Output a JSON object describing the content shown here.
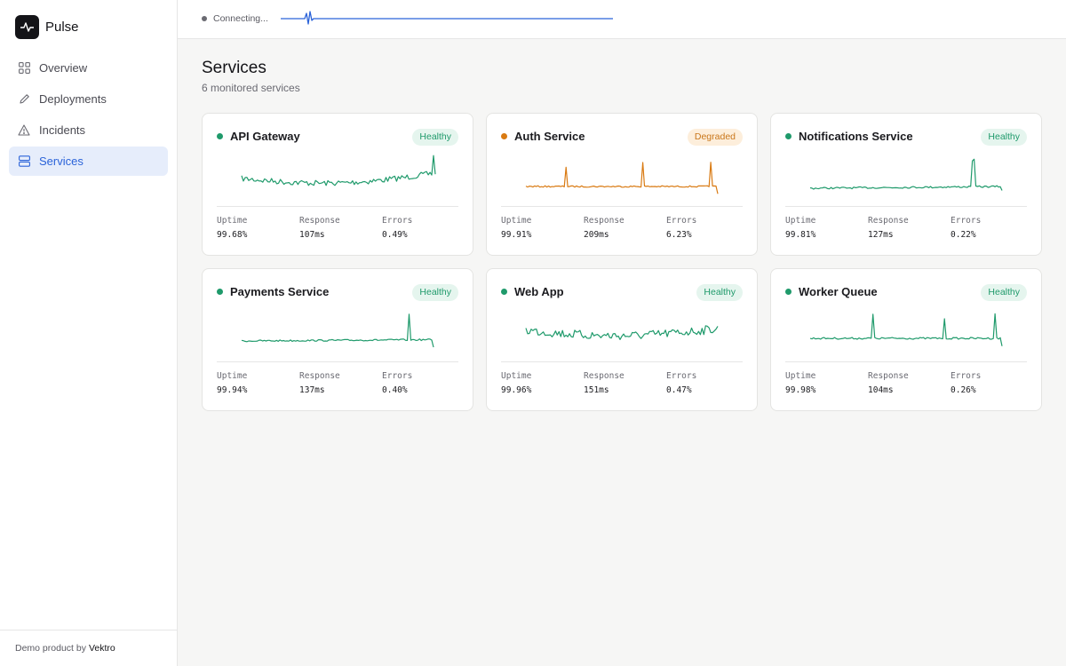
{
  "app": {
    "name": "Pulse"
  },
  "sidebar": {
    "items": [
      {
        "label": "Overview",
        "icon": "grid-icon",
        "active": false
      },
      {
        "label": "Deployments",
        "icon": "pencil-icon",
        "active": false
      },
      {
        "label": "Incidents",
        "icon": "warning-icon",
        "active": false
      },
      {
        "label": "Services",
        "icon": "server-icon",
        "active": true
      }
    ],
    "footer_text": "Demo product by",
    "footer_brand": "Vektro"
  },
  "topbar": {
    "status": "Connecting..."
  },
  "page": {
    "title": "Services",
    "subtitle": "6 monitored services"
  },
  "colors": {
    "healthy": "#1f9a6b",
    "degraded": "#d97a12",
    "accent": "#2b63d9"
  },
  "metric_labels": {
    "uptime": "Uptime",
    "response": "Response",
    "errors": "Errors"
  },
  "services": [
    {
      "name": "API Gateway",
      "status": "Healthy",
      "uptime": "99.68%",
      "response": "107ms",
      "errors": "0.49%"
    },
    {
      "name": "Auth Service",
      "status": "Degraded",
      "uptime": "99.91%",
      "response": "209ms",
      "errors": "6.23%"
    },
    {
      "name": "Notifications Service",
      "status": "Healthy",
      "uptime": "99.81%",
      "response": "127ms",
      "errors": "0.22%"
    },
    {
      "name": "Payments Service",
      "status": "Healthy",
      "uptime": "99.94%",
      "response": "137ms",
      "errors": "0.40%"
    },
    {
      "name": "Web App",
      "status": "Healthy",
      "uptime": "99.96%",
      "response": "151ms",
      "errors": "0.47%"
    },
    {
      "name": "Worker Queue",
      "status": "Healthy",
      "uptime": "99.98%",
      "response": "104ms",
      "errors": "0.26%"
    }
  ]
}
